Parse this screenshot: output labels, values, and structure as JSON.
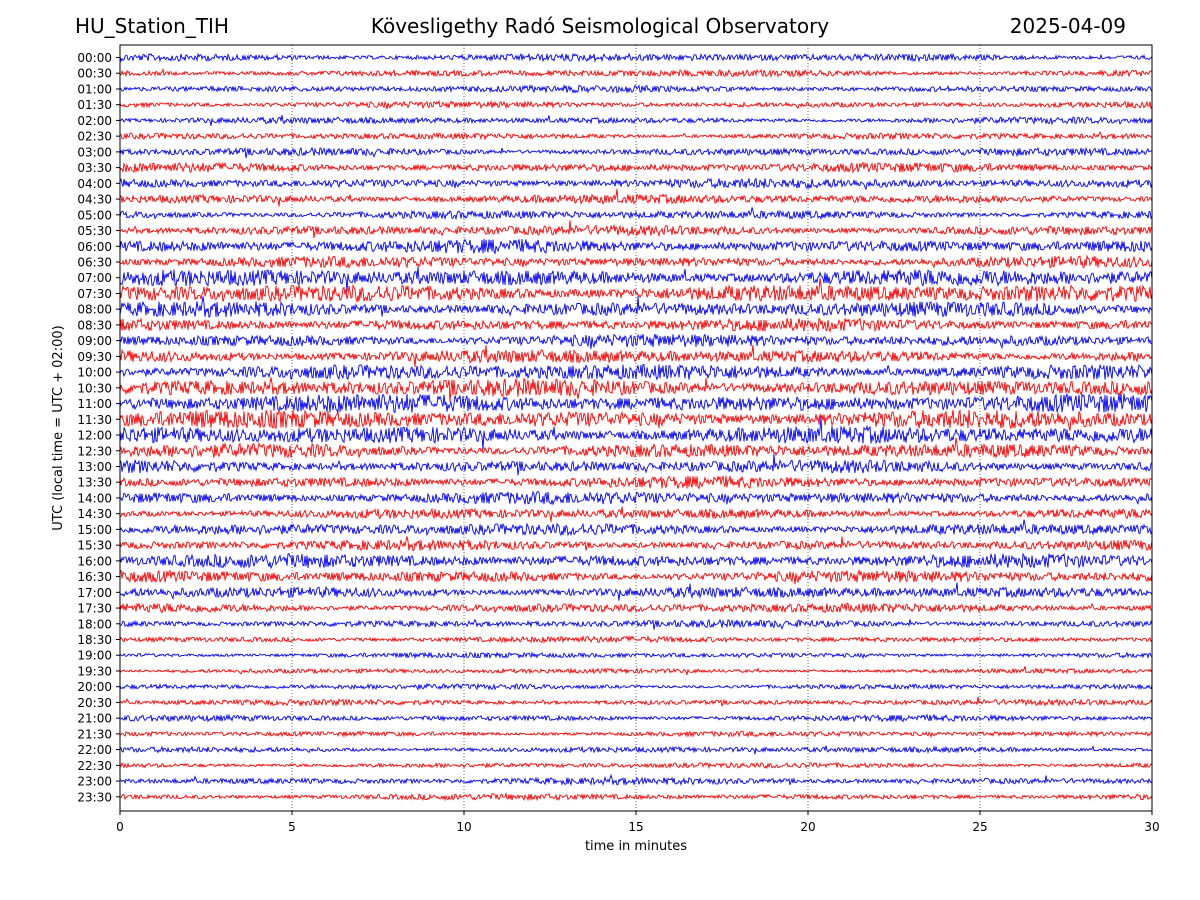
{
  "header": {
    "station": "HU_Station_TIH",
    "title": "Kövesligethy Radó Seismological Observatory",
    "date": "2025-04-09"
  },
  "chart_data": {
    "type": "line",
    "subtype": "helicorder",
    "xlabel": "time in minutes",
    "ylabel": "UTC (local time = UTC + 02:00)",
    "xlim": [
      0,
      30
    ],
    "x_ticks": [
      0,
      5,
      10,
      15,
      20,
      25,
      30
    ],
    "vertical_grid": true,
    "grid_style": "dotted",
    "colors": {
      "even_trace": "#0000ff",
      "odd_trace": "#ff0000"
    },
    "rows": [
      {
        "label": "00:00",
        "level": 0.3
      },
      {
        "label": "00:30",
        "level": 0.25
      },
      {
        "label": "01:00",
        "level": 0.25
      },
      {
        "label": "01:30",
        "level": 0.22
      },
      {
        "label": "02:00",
        "level": 0.22
      },
      {
        "label": "02:30",
        "level": 0.22
      },
      {
        "label": "03:00",
        "level": 0.3
      },
      {
        "label": "03:30",
        "level": 0.4
      },
      {
        "label": "04:00",
        "level": 0.42
      },
      {
        "label": "04:30",
        "level": 0.4
      },
      {
        "label": "05:00",
        "level": 0.35
      },
      {
        "label": "05:30",
        "level": 0.45
      },
      {
        "label": "06:00",
        "level": 0.65
      },
      {
        "label": "06:30",
        "level": 0.5
      },
      {
        "label": "07:00",
        "level": 0.85
      },
      {
        "label": "07:30",
        "level": 0.9
      },
      {
        "label": "08:00",
        "level": 0.75
      },
      {
        "label": "08:30",
        "level": 0.6
      },
      {
        "label": "09:00",
        "level": 0.6
      },
      {
        "label": "09:30",
        "level": 0.65
      },
      {
        "label": "10:00",
        "level": 0.8
      },
      {
        "label": "10:30",
        "level": 0.9
      },
      {
        "label": "11:00",
        "level": 0.95
      },
      {
        "label": "11:30",
        "level": 0.95
      },
      {
        "label": "12:00",
        "level": 0.9
      },
      {
        "label": "12:30",
        "level": 0.7
      },
      {
        "label": "13:00",
        "level": 0.6
      },
      {
        "label": "13:30",
        "level": 0.55
      },
      {
        "label": "14:00",
        "level": 0.6
      },
      {
        "label": "14:30",
        "level": 0.45
      },
      {
        "label": "15:00",
        "level": 0.55
      },
      {
        "label": "15:30",
        "level": 0.45
      },
      {
        "label": "16:00",
        "level": 0.65
      },
      {
        "label": "16:30",
        "level": 0.55
      },
      {
        "label": "17:00",
        "level": 0.5
      },
      {
        "label": "17:30",
        "level": 0.4
      },
      {
        "label": "18:00",
        "level": 0.28
      },
      {
        "label": "18:30",
        "level": 0.2
      },
      {
        "label": "19:00",
        "level": 0.15
      },
      {
        "label": "19:30",
        "level": 0.12
      },
      {
        "label": "20:00",
        "level": 0.15
      },
      {
        "label": "20:30",
        "level": 0.18
      },
      {
        "label": "21:00",
        "level": 0.2
      },
      {
        "label": "21:30",
        "level": 0.15
      },
      {
        "label": "22:00",
        "level": 0.18
      },
      {
        "label": "22:30",
        "level": 0.15
      },
      {
        "label": "23:00",
        "level": 0.25
      },
      {
        "label": "23:30",
        "level": 0.2
      }
    ]
  }
}
